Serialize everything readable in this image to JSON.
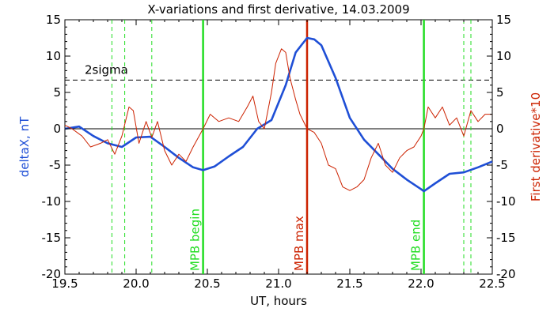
{
  "chart_data": {
    "type": "line",
    "title": "X-variations and first derivative, 14.03.2009",
    "xlabel": "UT, hours",
    "ylabel_left": "deltaX, nT",
    "ylabel_right": "First derivative*10",
    "xlim": [
      19.5,
      22.5
    ],
    "ylim": [
      -20,
      15
    ],
    "xticks": [
      "19.5",
      "20.0",
      "20.5",
      "21.0",
      "21.5",
      "22.0",
      "22.5"
    ],
    "yticks_left": [
      "15",
      "10",
      "5",
      "0",
      "-5",
      "-10",
      "-15",
      "-20"
    ],
    "yticks_right": [
      "15",
      "10",
      "5",
      "0",
      "-5",
      "-10",
      "-15",
      "-20"
    ],
    "grid": false,
    "colors": {
      "deltaX": "#1f4fd6",
      "derivative": "#cc2200",
      "mpb_begin_end": "#22dd22",
      "mpb_max": "#cc2200",
      "dashed_green": "#22dd22",
      "sigma": "#000000",
      "left_axis_label": "#1f4fd6",
      "right_axis_label": "#cc2200"
    },
    "threshold": {
      "label": "2sigma",
      "value": 6.7
    },
    "markers": [
      {
        "label": "MPB begin",
        "x": 20.47,
        "color": "#22dd22"
      },
      {
        "label": "MPB max",
        "x": 21.2,
        "color": "#cc2200"
      },
      {
        "label": "MPB end",
        "x": 22.02,
        "color": "#22dd22"
      }
    ],
    "dashed_lines": [
      19.83,
      19.92,
      20.11,
      22.3,
      22.35
    ],
    "series": [
      {
        "axis": "left",
        "x": [
          19.5,
          19.6,
          19.7,
          19.8,
          19.9,
          20.0,
          20.1,
          20.2,
          20.3,
          20.4,
          20.47,
          20.55,
          20.65,
          20.75,
          20.85,
          20.95,
          21.05,
          21.12,
          21.2,
          21.25,
          21.3,
          21.4,
          21.5,
          21.6,
          21.7,
          21.8,
          21.9,
          22.0,
          22.02,
          22.1,
          22.2,
          22.3,
          22.4,
          22.5
        ],
        "values": [
          0.0,
          0.3,
          -1.0,
          -2.0,
          -2.5,
          -1.2,
          -1.1,
          -2.5,
          -4.0,
          -5.3,
          -5.7,
          -5.2,
          -3.8,
          -2.5,
          0.0,
          1.2,
          6.0,
          10.5,
          12.5,
          12.3,
          11.5,
          7.0,
          1.5,
          -1.5,
          -3.5,
          -5.5,
          -7.0,
          -8.3,
          -8.6,
          -7.5,
          -6.2,
          -6.0,
          -5.3,
          -4.5
        ]
      },
      {
        "axis": "right",
        "x": [
          19.5,
          19.55,
          19.62,
          19.68,
          19.75,
          19.8,
          19.85,
          19.9,
          19.95,
          19.98,
          20.02,
          20.07,
          20.11,
          20.15,
          20.2,
          20.25,
          20.3,
          20.35,
          20.4,
          20.47,
          20.52,
          20.58,
          20.65,
          20.72,
          20.78,
          20.82,
          20.86,
          20.9,
          20.95,
          20.98,
          21.02,
          21.05,
          21.08,
          21.12,
          21.15,
          21.2,
          21.25,
          21.3,
          21.35,
          21.4,
          21.45,
          21.5,
          21.55,
          21.6,
          21.65,
          21.7,
          21.75,
          21.8,
          21.85,
          21.9,
          21.95,
          22.0,
          22.02,
          22.05,
          22.1,
          22.15,
          22.2,
          22.25,
          22.3,
          22.35,
          22.4,
          22.45,
          22.5
        ],
        "values": [
          0.5,
          0.0,
          -1.0,
          -2.5,
          -2.0,
          -1.5,
          -3.5,
          -1.0,
          3.0,
          2.5,
          -2.0,
          1.0,
          -1.2,
          1.0,
          -3.0,
          -5.0,
          -3.5,
          -4.5,
          -2.5,
          0.0,
          2.0,
          1.0,
          1.5,
          1.0,
          3.0,
          4.5,
          1.0,
          0.0,
          5.0,
          9.0,
          11.0,
          10.5,
          7.0,
          4.0,
          2.0,
          0.0,
          -0.5,
          -2.0,
          -5.0,
          -5.5,
          -8.0,
          -8.5,
          -8.0,
          -7.0,
          -4.0,
          -2.0,
          -5.0,
          -6.0,
          -4.0,
          -3.0,
          -2.5,
          -1.0,
          0.0,
          3.0,
          1.5,
          3.0,
          0.5,
          1.5,
          -1.0,
          2.5,
          1.0,
          2.0,
          2.0
        ]
      }
    ]
  }
}
